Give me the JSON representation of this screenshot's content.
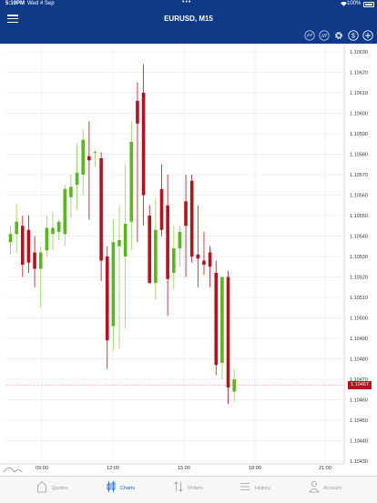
{
  "status_bar": {
    "time": "5:19PM",
    "date": "Wed 4 Sep",
    "dots": "•••",
    "wifi_icon": "wifi-icon",
    "battery": "100%"
  },
  "header": {
    "title": "EURUSD, M15",
    "menu_icon": "hamburger-menu-icon"
  },
  "toolbar": {
    "icons": [
      "indicator-icon",
      "objects-icon",
      "settings-gear-icon",
      "dollar-icon",
      "plus-icon"
    ]
  },
  "chart_data": {
    "type": "candlestick",
    "symbol": "EURUSD",
    "timeframe": "M15",
    "y_axis_labels": [
      "1.10630",
      "1.10620",
      "1.10610",
      "1.10600",
      "1.10590",
      "1.10580",
      "1.10570",
      "1.10560",
      "1.10550",
      "1.10540",
      "1.10530",
      "1.10520",
      "1.10510",
      "1.10500",
      "1.10490",
      "1.10480",
      "1.10470",
      "1.10460",
      "1.10450",
      "1.10440",
      "1.10430"
    ],
    "ylim": [
      1.1043,
      1.1063
    ],
    "x_axis_labels": [
      "09:00",
      "12:00",
      "15:00",
      "18:00",
      "21:00"
    ],
    "current_price": "1.10467",
    "bull_color": "#5bb51f",
    "bear_color": "#b4121e",
    "candles": [
      {
        "o": 1.10537,
        "h": 1.10545,
        "l": 1.10531,
        "c": 1.10541
      },
      {
        "o": 1.10541,
        "h": 1.10556,
        "l": 1.10532,
        "c": 1.10547
      },
      {
        "o": 1.10545,
        "h": 1.1055,
        "l": 1.1052,
        "c": 1.10526
      },
      {
        "o": 1.10543,
        "h": 1.1055,
        "l": 1.10522,
        "c": 1.10527
      },
      {
        "o": 1.10532,
        "h": 1.1054,
        "l": 1.10515,
        "c": 1.10524
      },
      {
        "o": 1.10524,
        "h": 1.10535,
        "l": 1.10505,
        "c": 1.10532
      },
      {
        "o": 1.10533,
        "h": 1.1055,
        "l": 1.1053,
        "c": 1.10544
      },
      {
        "o": 1.10541,
        "h": 1.10552,
        "l": 1.10533,
        "c": 1.10544
      },
      {
        "o": 1.10542,
        "h": 1.10548,
        "l": 1.10538,
        "c": 1.10547
      },
      {
        "o": 1.10541,
        "h": 1.10565,
        "l": 1.10535,
        "c": 1.10563
      },
      {
        "o": 1.10559,
        "h": 1.1057,
        "l": 1.10549,
        "c": 1.10564
      },
      {
        "o": 1.10565,
        "h": 1.10585,
        "l": 1.10553,
        "c": 1.10571
      },
      {
        "o": 1.1057,
        "h": 1.10592,
        "l": 1.1056,
        "c": 1.10587
      },
      {
        "o": 1.10579,
        "h": 1.10596,
        "l": 1.10548,
        "c": 1.10577
      },
      {
        "o": 1.10581,
        "h": 1.10582,
        "l": 1.10574,
        "c": 1.10581
      },
      {
        "o": 1.10578,
        "h": 1.10581,
        "l": 1.10518,
        "c": 1.10528
      },
      {
        "o": 1.1053,
        "h": 1.10535,
        "l": 1.10475,
        "c": 1.10489
      },
      {
        "o": 1.10496,
        "h": 1.10548,
        "l": 1.10484,
        "c": 1.10537
      },
      {
        "o": 1.10535,
        "h": 1.10555,
        "l": 1.10485,
        "c": 1.10538
      },
      {
        "o": 1.1053,
        "h": 1.10575,
        "l": 1.10495,
        "c": 1.10546
      },
      {
        "o": 1.10547,
        "h": 1.10596,
        "l": 1.10533,
        "c": 1.10586
      },
      {
        "o": 1.10606,
        "h": 1.10615,
        "l": 1.10537,
        "c": 1.10595
      },
      {
        "o": 1.1061,
        "h": 1.10624,
        "l": 1.10545,
        "c": 1.1056
      },
      {
        "o": 1.1055,
        "h": 1.10555,
        "l": 1.10517,
        "c": 1.10517
      },
      {
        "o": 1.10517,
        "h": 1.10558,
        "l": 1.10509,
        "c": 1.10543
      },
      {
        "o": 1.10563,
        "h": 1.10575,
        "l": 1.1054,
        "c": 1.10543
      },
      {
        "o": 1.10555,
        "h": 1.1057,
        "l": 1.10501,
        "c": 1.10519
      },
      {
        "o": 1.10522,
        "h": 1.10545,
        "l": 1.10514,
        "c": 1.10534
      },
      {
        "o": 1.10534,
        "h": 1.10545,
        "l": 1.10525,
        "c": 1.10542
      },
      {
        "o": 1.10557,
        "h": 1.1057,
        "l": 1.1052,
        "c": 1.10545
      },
      {
        "o": 1.10567,
        "h": 1.1057,
        "l": 1.10527,
        "c": 1.1053
      },
      {
        "o": 1.10531,
        "h": 1.10555,
        "l": 1.10515,
        "c": 1.10529
      },
      {
        "o": 1.10528,
        "h": 1.10542,
        "l": 1.10521,
        "c": 1.10526
      },
      {
        "o": 1.10532,
        "h": 1.10535,
        "l": 1.10515,
        "c": 1.10525
      },
      {
        "o": 1.10522,
        "h": 1.10528,
        "l": 1.10472,
        "c": 1.10477
      },
      {
        "o": 1.10478,
        "h": 1.1052,
        "l": 1.1047,
        "c": 1.1052
      },
      {
        "o": 1.1052,
        "h": 1.10523,
        "l": 1.10458,
        "c": 1.10466
      },
      {
        "o": 1.10464,
        "h": 1.10475,
        "l": 1.10459,
        "c": 1.1047
      }
    ]
  },
  "tabs": [
    {
      "label": "Quotes",
      "icon": "quotes-house-icon",
      "active": false
    },
    {
      "label": "Charts",
      "icon": "charts-candles-icon",
      "active": true
    },
    {
      "label": "Orders",
      "icon": "orders-arrows-icon",
      "active": false
    },
    {
      "label": "History",
      "icon": "history-list-icon",
      "active": false
    },
    {
      "label": "Account",
      "icon": "account-person-icon",
      "active": false
    }
  ]
}
